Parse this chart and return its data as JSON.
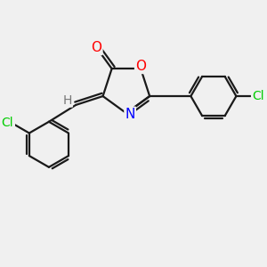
{
  "background_color": "#f0f0f0",
  "bond_color": "#1a1a1a",
  "atom_colors": {
    "O": "#ff0000",
    "N": "#0000ff",
    "Cl": "#00cc00",
    "C": "#1a1a1a",
    "H": "#777777"
  },
  "font_size": 9,
  "figsize": [
    3.0,
    3.0
  ],
  "dpi": 100,
  "xlim": [
    -2.0,
    3.2
  ],
  "ylim": [
    -2.8,
    1.8
  ]
}
